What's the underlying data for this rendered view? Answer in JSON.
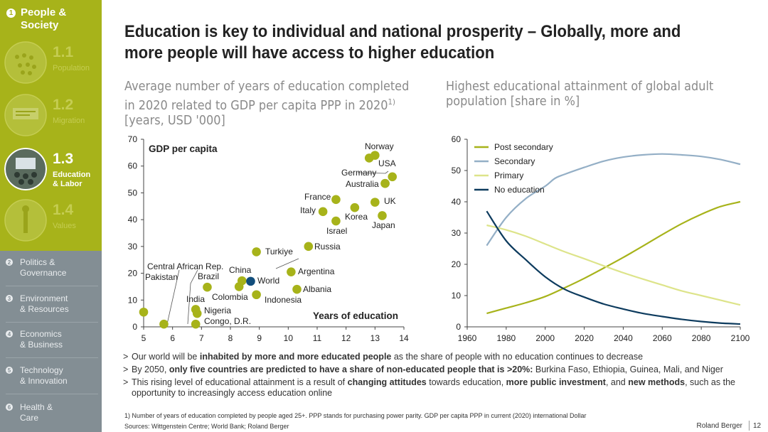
{
  "sidebar": {
    "section_number": "1",
    "section_title_1": "People &",
    "section_title_2": "Society",
    "subs": [
      {
        "num": "1.1",
        "label_1": "Population",
        "label_2": ""
      },
      {
        "num": "1.2",
        "label_1": "Migration",
        "label_2": ""
      },
      {
        "num": "1.3",
        "label_1": "Education",
        "label_2": "& Labor"
      },
      {
        "num": "1.4",
        "label_1": "Values",
        "label_2": ""
      }
    ],
    "chapters": [
      {
        "num": "2",
        "label_1": "Politics &",
        "label_2": "Governance"
      },
      {
        "num": "3",
        "label_1": "Environment",
        "label_2": "& Resources"
      },
      {
        "num": "4",
        "label_1": "Economics",
        "label_2": "& Business"
      },
      {
        "num": "5",
        "label_1": "Technology",
        "label_2": "& Innovation"
      },
      {
        "num": "6",
        "label_1": "Health &",
        "label_2": "Care"
      }
    ]
  },
  "title_line1": "Education is key to individual and national prosperity – Globally, more and",
  "title_line2": "more people will have access to higher education",
  "left_subtitle": {
    "line1": "Average number of years of education completed",
    "line2": "in 2020 related to GDP per capita PPP in 2020",
    "sup": "1)",
    "line3": "[years, USD '000]"
  },
  "right_subtitle": {
    "line1": "Highest educational attainment of global adult",
    "line2": "population [share in %]"
  },
  "bullets": [
    {
      "pre": "Our world will be ",
      "bold1": "inhabited by more and more educated people",
      "mid": " as the share of people with no education continues to decrease",
      "bold2": "",
      "mid2": "",
      "bold3": "",
      "post": ""
    },
    {
      "pre": "By 2050, ",
      "bold1": "only five countries are predicted to have a share of non-educated people that is >20%:",
      "mid": " Burkina Faso, Ethiopia, Guinea, Mali, and Niger",
      "bold2": "",
      "mid2": "",
      "bold3": "",
      "post": ""
    },
    {
      "pre": "This rising level of educational attainment is a result of ",
      "bold1": "changing attitudes",
      "mid": " towards education, ",
      "bold2": "more public investment",
      "mid2": ", and ",
      "bold3": "new methods",
      "post": ", such as the opportunity to increasingly access education online"
    }
  ],
  "footnote": "1) Number of years of education completed by people aged 25+. PPP stands for purchasing power parity. GDP per capita PPP in current (2020) international Dollar",
  "sources": "Sources: Wittgenstein Centre; World Bank; Roland Berger",
  "brand": "Roland Berger",
  "page_number": "12",
  "colors": {
    "olive": "#a7b31a",
    "blue_gray": "#94afc6",
    "light_olive": "#dde48a",
    "navy": "#0d3b5e",
    "world": "#124e7c"
  },
  "chart_data": [
    {
      "type": "scatter",
      "title": "GDP per capita",
      "xlabel": "Years of education",
      "ylabel": "GDP per capita",
      "xlim": [
        5,
        14
      ],
      "ylim": [
        0,
        70
      ],
      "xticks": [
        5,
        6,
        7,
        8,
        9,
        10,
        11,
        12,
        13,
        14
      ],
      "yticks": [
        0,
        10,
        20,
        30,
        40,
        50,
        60,
        70
      ],
      "points": [
        {
          "name": "Central African Rep.",
          "x": 5.0,
          "y": 5.5
        },
        {
          "name": "Pakistan",
          "x": 5.7,
          "y": 1.0
        },
        {
          "name": "India",
          "x": 6.8,
          "y": 6.5
        },
        {
          "name": "Nigeria",
          "x": 6.85,
          "y": 5.0
        },
        {
          "name": "Congo, D.R.",
          "x": 6.8,
          "y": 1.0
        },
        {
          "name": "Brazil",
          "x": 7.2,
          "y": 14.8
        },
        {
          "name": "Colombia",
          "x": 8.3,
          "y": 15.0
        },
        {
          "name": "China",
          "x": 8.4,
          "y": 17.2
        },
        {
          "name": "World",
          "x": 8.7,
          "y": 17.0
        },
        {
          "name": "Indonesia",
          "x": 8.9,
          "y": 12.0
        },
        {
          "name": "Turkiye",
          "x": 8.9,
          "y": 28.0
        },
        {
          "name": "Argentina",
          "x": 10.1,
          "y": 20.5
        },
        {
          "name": "Albania",
          "x": 10.3,
          "y": 14.0
        },
        {
          "name": "Russia",
          "x": 10.7,
          "y": 30.0
        },
        {
          "name": "Italy",
          "x": 11.2,
          "y": 43.0
        },
        {
          "name": "France",
          "x": 11.65,
          "y": 47.5
        },
        {
          "name": "Israel",
          "x": 11.65,
          "y": 39.5
        },
        {
          "name": "Korea",
          "x": 12.3,
          "y": 44.5
        },
        {
          "name": "Norway",
          "x": 12.8,
          "y": 63.0
        },
        {
          "name": "Norway (2)",
          "x": 13.0,
          "y": 64.0
        },
        {
          "name": "Germany",
          "x": 13.35,
          "y": 53.5
        },
        {
          "name": "Australia",
          "x": 13.35,
          "y": 53.5
        },
        {
          "name": "USA",
          "x": 13.6,
          "y": 56.0
        },
        {
          "name": "UK",
          "x": 13.0,
          "y": 46.5
        },
        {
          "name": "Japan",
          "x": 13.25,
          "y": 41.5
        }
      ],
      "labels": [
        {
          "text": "Central African Rep."
        },
        {
          "text": "Pakistan"
        },
        {
          "text": "India"
        },
        {
          "text": "Nigeria"
        },
        {
          "text": "Congo, D.R."
        },
        {
          "text": "Brazil"
        },
        {
          "text": "Colombia"
        },
        {
          "text": "China"
        },
        {
          "text": "World"
        },
        {
          "text": "Indonesia"
        },
        {
          "text": "Turkiye"
        },
        {
          "text": "Argentina"
        },
        {
          "text": "Albania"
        },
        {
          "text": "Russia"
        },
        {
          "text": "Italy"
        },
        {
          "text": "France"
        },
        {
          "text": "Israel"
        },
        {
          "text": "Korea"
        },
        {
          "text": "Norway"
        },
        {
          "text": "Germany"
        },
        {
          "text": "Australia"
        },
        {
          "text": "USA"
        },
        {
          "text": "UK"
        },
        {
          "text": "Japan"
        }
      ]
    },
    {
      "type": "line",
      "title": "Highest educational attainment of global adult population [share in %]",
      "xlabel": "",
      "ylabel": "",
      "xlim": [
        1960,
        2100
      ],
      "ylim": [
        0,
        60
      ],
      "xticks": [
        1960,
        1980,
        2000,
        2020,
        2040,
        2060,
        2080,
        2100
      ],
      "yticks": [
        0,
        10,
        20,
        30,
        40,
        50,
        60
      ],
      "legend": "top-left",
      "series": [
        {
          "name": "Post secondary",
          "color": "#a7b31a",
          "x": [
            1970,
            1980,
            1990,
            2000,
            2010,
            2020,
            2030,
            2040,
            2050,
            2060,
            2070,
            2080,
            2090,
            2100
          ],
          "values": [
            4.3,
            6.0,
            7.7,
            9.7,
            12.5,
            15.5,
            18.8,
            22.2,
            25.8,
            29.5,
            33.0,
            36.0,
            38.5,
            40.0
          ]
        },
        {
          "name": "Secondary",
          "color": "#94afc6",
          "x": [
            1970,
            1980,
            1990,
            2000,
            2005,
            2010,
            2020,
            2030,
            2040,
            2050,
            2060,
            2070,
            2080,
            2090,
            2100
          ],
          "values": [
            26,
            35,
            41,
            45,
            47.5,
            48.8,
            51,
            53,
            54.3,
            55,
            55.3,
            55,
            54.5,
            53.5,
            52
          ]
        },
        {
          "name": "Primary",
          "color": "#dde48a",
          "x": [
            1970,
            1980,
            1990,
            2000,
            2010,
            2020,
            2030,
            2040,
            2050,
            2060,
            2070,
            2080,
            2090,
            2100
          ],
          "values": [
            32.5,
            31.0,
            29.0,
            26.5,
            24.0,
            21.8,
            19.5,
            17.3,
            15.3,
            13.4,
            11.5,
            10.0,
            8.5,
            7.0
          ]
        },
        {
          "name": "No education",
          "color": "#0d3b5e",
          "x": [
            1970,
            1980,
            1990,
            2000,
            2010,
            2020,
            2030,
            2040,
            2050,
            2060,
            2070,
            2080,
            2090,
            2100
          ],
          "values": [
            37.0,
            27.5,
            21.5,
            16.0,
            12.0,
            9.5,
            7.3,
            5.7,
            4.3,
            3.3,
            2.4,
            1.7,
            1.2,
            0.9
          ]
        }
      ]
    }
  ]
}
